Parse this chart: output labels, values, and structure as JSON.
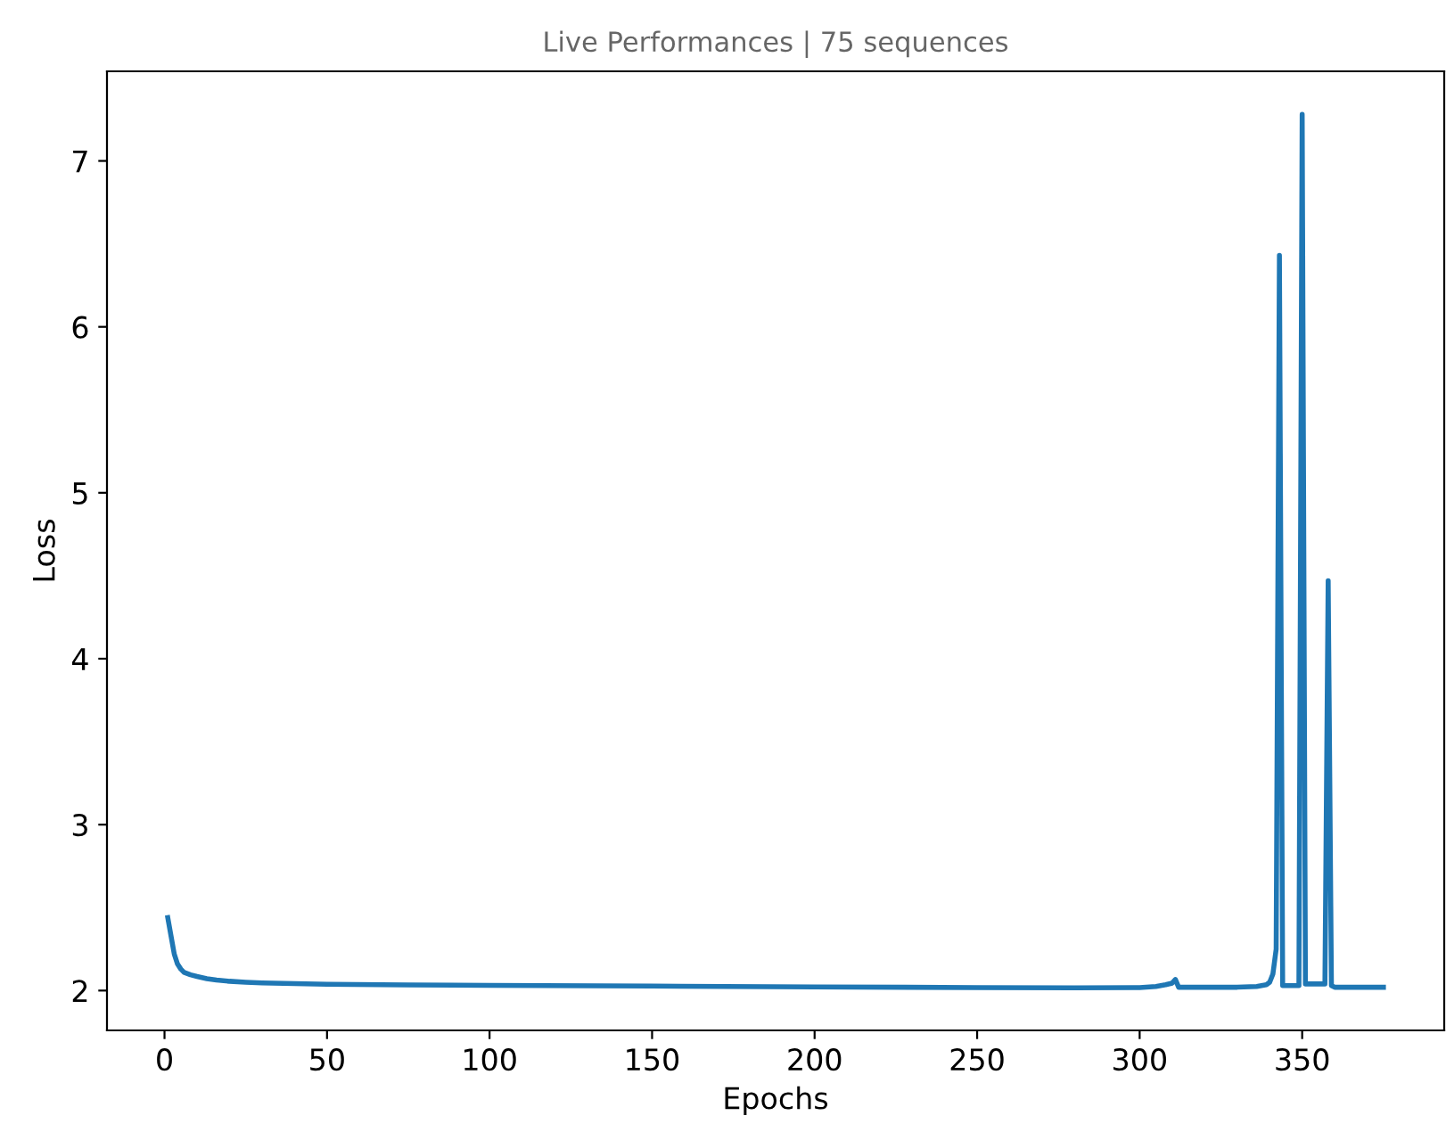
{
  "chart_data": {
    "type": "line",
    "title": "Live Performances | 75 sequences",
    "xlabel": "Epochs",
    "ylabel": "Loss",
    "x": [
      1,
      2,
      3,
      4,
      5,
      6,
      8,
      10,
      13,
      16,
      20,
      25,
      30,
      40,
      50,
      75,
      100,
      150,
      200,
      250,
      280,
      300,
      305,
      308,
      310,
      311,
      312,
      320,
      330,
      336,
      339,
      340,
      341,
      342,
      343,
      344,
      345,
      348,
      349,
      350,
      351,
      352,
      355,
      357,
      358,
      359,
      360,
      365,
      370,
      375
    ],
    "series": [
      {
        "color": "#1f77b4",
        "values": [
          2.44,
          2.33,
          2.22,
          2.16,
          2.13,
          2.11,
          2.095,
          2.085,
          2.072,
          2.063,
          2.056,
          2.05,
          2.046,
          2.042,
          2.038,
          2.034,
          2.031,
          2.027,
          2.022,
          2.018,
          2.017,
          2.018,
          2.025,
          2.035,
          2.045,
          2.067,
          2.02,
          2.02,
          2.02,
          2.025,
          2.035,
          2.05,
          2.1,
          2.25,
          6.43,
          2.03,
          2.03,
          2.03,
          2.03,
          7.28,
          2.04,
          2.04,
          2.04,
          2.04,
          4.47,
          2.03,
          2.02,
          2.02,
          2.02,
          2.02
        ]
      }
    ],
    "xlim": [
      -17.7,
      393.7
    ],
    "ylim": [
      1.76,
      7.54
    ],
    "xticks": [
      0,
      50,
      100,
      150,
      200,
      250,
      300,
      350
    ],
    "yticks": [
      2,
      3,
      4,
      5,
      6,
      7
    ],
    "grid": false,
    "legend": false
  }
}
